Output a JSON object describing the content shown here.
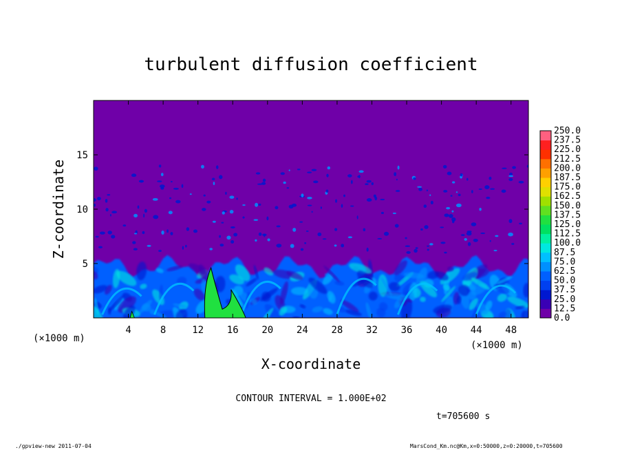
{
  "chart_data": {
    "type": "heatmap",
    "title": "turbulent diffusion coefficient",
    "xlabel": "X-coordinate",
    "ylabel": "Z-coordinate",
    "x_unit": "(×1000 m)",
    "y_unit": "(×1000 m)",
    "xlim": [
      0,
      50
    ],
    "ylim": [
      0,
      20
    ],
    "x_ticks": [
      4,
      8,
      12,
      16,
      20,
      24,
      28,
      32,
      36,
      40,
      44,
      48
    ],
    "y_ticks": [
      5,
      10,
      15
    ],
    "colorbar": {
      "levels": [
        "0.0",
        "12.5",
        "25.0",
        "37.5",
        "50.0",
        "62.5",
        "75.0",
        "87.5",
        "100.0",
        "112.5",
        "125.0",
        "137.5",
        "150.0",
        "162.5",
        "175.0",
        "187.5",
        "200.0",
        "212.5",
        "225.0",
        "237.5",
        "250.0"
      ],
      "colors": [
        "#6f00a8",
        "#3a00b5",
        "#0018d0",
        "#0040f0",
        "#0060ff",
        "#0090ff",
        "#00c0ff",
        "#00e8e0",
        "#00f0a0",
        "#00e060",
        "#20e040",
        "#60e020",
        "#a0e000",
        "#e0e000",
        "#ffd000",
        "#ffa000",
        "#ff7000",
        "#ff3000",
        "#ff2020",
        "#ff6080"
      ]
    },
    "contour_interval": "CONTOUR INTERVAL = 1.000E+02",
    "time_label": "t=705600 s",
    "features": {
      "background_value": 0,
      "turbulent_layer_top_km": 5,
      "max_region_center_km": [
        14,
        2
      ],
      "contour_value": 100
    }
  },
  "footer": {
    "left": "./gpview-new  2011-07-04",
    "right": "MarsCond_Km.nc@Km,x=0:50000,z=0:20000,t=705600"
  }
}
